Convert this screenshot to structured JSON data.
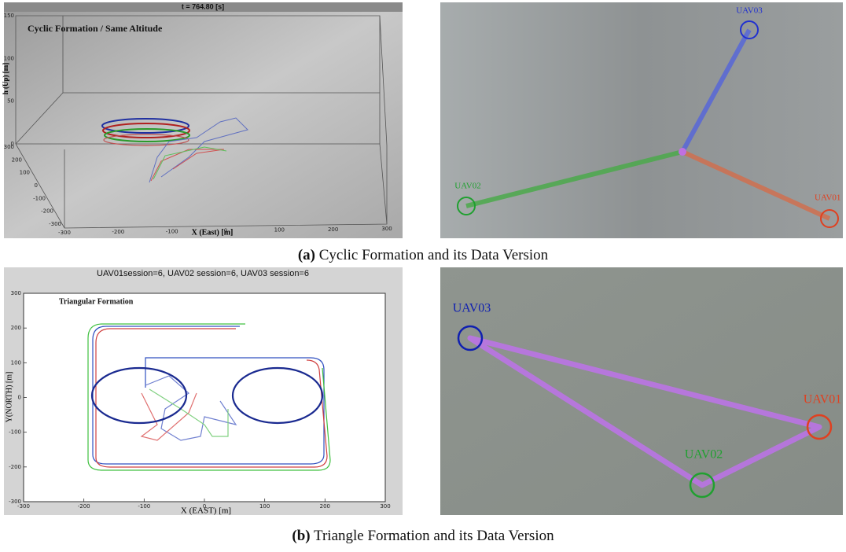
{
  "panel_a": {
    "plot": {
      "header": "t = 764.80 [s]",
      "title": "Cyclic Formation / Same Altitude",
      "z_label": "h (Up) [m]",
      "x_label": "X (East) [m]",
      "zticks": [
        150,
        100,
        50,
        0
      ],
      "yticks": [
        300,
        200,
        100,
        0,
        -100,
        -200,
        -300
      ],
      "xticks": [
        -300,
        -200,
        -100,
        0,
        100,
        200,
        300
      ]
    },
    "photo": {
      "labels": [
        "UAV03",
        "UAV02",
        "UAV01"
      ]
    },
    "caption": {
      "label": "(a)",
      "text": "Cyclic Formation and its Data Version"
    }
  },
  "panel_b": {
    "plot": {
      "header": "UAV01session=6, UAV02 session=6, UAV03 session=6",
      "title": "Triangular Formation",
      "y_label": "Y(NORTH) [m]",
      "x_label": "X (EAST) [m]",
      "xticks": [
        -300,
        -200,
        -100,
        0,
        100,
        200,
        300
      ],
      "yticks": [
        300,
        200,
        100,
        0,
        -100,
        -200,
        -300
      ]
    },
    "photo": {
      "labels": [
        "UAV03",
        "UAV01",
        "UAV02"
      ]
    },
    "caption": {
      "label": "(b)",
      "text": "Triangle Formation and its Data Version"
    }
  }
}
